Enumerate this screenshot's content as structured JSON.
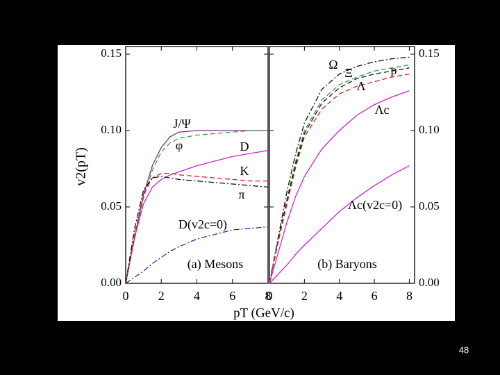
{
  "figure": {
    "ylabel": "v2(pT)",
    "xlabel": "pT (GeV/c)"
  },
  "slide_number": "48",
  "chart_data": [
    {
      "type": "line",
      "title": "(a) Mesons",
      "xlim": [
        0,
        8
      ],
      "ylim": [
        0,
        0.155
      ],
      "xticks": [
        0,
        2,
        4,
        6,
        8
      ],
      "yticks": [
        {
          "value": 0,
          "label": "0.00"
        },
        {
          "value": 0.05,
          "label": "0.05"
        },
        {
          "value": 0.1,
          "label": "0.10"
        },
        {
          "value": 0.15,
          "label": "0.15"
        }
      ],
      "y_axis_side": "left",
      "x": [
        0,
        0.5,
        1,
        1.5,
        2,
        2.5,
        3,
        4,
        5,
        6,
        7,
        8
      ],
      "series": [
        {
          "name": "J/Ψ",
          "color": "#7a2a8a",
          "dash": "solid",
          "values": [
            0,
            0.03,
            0.058,
            0.077,
            0.089,
            0.096,
            0.099,
            0.1,
            0.1,
            0.1,
            0.1,
            0.1
          ]
        },
        {
          "name": "φ",
          "color": "#3a9a3a",
          "dash": "dashed",
          "values": [
            0,
            0.029,
            0.056,
            0.074,
            0.086,
            0.092,
            0.095,
            0.097,
            0.098,
            0.099,
            0.1,
            0.1
          ]
        },
        {
          "name": "D",
          "color": "#cc22cc",
          "dash": "solid",
          "values": [
            0,
            0.03,
            0.052,
            0.063,
            0.068,
            0.071,
            0.073,
            0.077,
            0.08,
            0.083,
            0.085,
            0.087
          ]
        },
        {
          "name": "K",
          "color": "#cc2222",
          "dash": "dashed",
          "values": [
            0,
            0.032,
            0.058,
            0.069,
            0.072,
            0.072,
            0.071,
            0.07,
            0.069,
            0.068,
            0.067,
            0.067
          ]
        },
        {
          "name": "π",
          "color": "#111111",
          "dash": "dashdot",
          "values": [
            0,
            0.036,
            0.061,
            0.069,
            0.07,
            0.069,
            0.068,
            0.067,
            0.066,
            0.065,
            0.064,
            0.063
          ]
        },
        {
          "name": "D(v2c=0)",
          "color": "#2233aa",
          "dash": "dashdot",
          "values": [
            0,
            0.004,
            0.008,
            0.013,
            0.017,
            0.021,
            0.024,
            0.029,
            0.032,
            0.035,
            0.036,
            0.037
          ]
        }
      ]
    },
    {
      "type": "line",
      "title": "(b) Baryons",
      "xlim": [
        0,
        8.3
      ],
      "ylim": [
        0,
        0.155
      ],
      "xticks": [
        0,
        2,
        4,
        6,
        8
      ],
      "yticks": [
        {
          "value": 0,
          "label": "0.00"
        },
        {
          "value": 0.05,
          "label": "0.05"
        },
        {
          "value": 0.1,
          "label": "0.10"
        },
        {
          "value": 0.15,
          "label": "0.15"
        }
      ],
      "y_axis_side": "right",
      "x": [
        0,
        0.5,
        1,
        1.5,
        2,
        3,
        4,
        5,
        6,
        7,
        8
      ],
      "series": [
        {
          "name": "Ω",
          "color": "#111111",
          "dash": "dashdot",
          "values": [
            0,
            0.03,
            0.06,
            0.085,
            0.105,
            0.127,
            0.137,
            0.142,
            0.145,
            0.147,
            0.148
          ]
        },
        {
          "name": "p",
          "color": "#3a9a3a",
          "dash": "dashed",
          "values": [
            0,
            0.028,
            0.055,
            0.08,
            0.1,
            0.12,
            0.13,
            0.135,
            0.139,
            0.141,
            0.143
          ]
        },
        {
          "name": "Ξ",
          "color": "#111111",
          "dash": "dashed",
          "values": [
            0,
            0.028,
            0.054,
            0.078,
            0.098,
            0.118,
            0.128,
            0.134,
            0.137,
            0.139,
            0.141
          ]
        },
        {
          "name": "Λ",
          "color": "#cc2222",
          "dash": "dashed",
          "values": [
            0,
            0.027,
            0.052,
            0.076,
            0.096,
            0.114,
            0.124,
            0.129,
            0.132,
            0.135,
            0.137
          ]
        },
        {
          "name": "Λc",
          "color": "#cc22cc",
          "dash": "solid",
          "values": [
            0,
            0.02,
            0.04,
            0.057,
            0.07,
            0.088,
            0.1,
            0.11,
            0.117,
            0.122,
            0.126
          ]
        },
        {
          "name": "Λc(v2c=0)",
          "color": "#cc22cc",
          "dash": "solid",
          "values": [
            0,
            0.006,
            0.012,
            0.019,
            0.025,
            0.036,
            0.047,
            0.056,
            0.064,
            0.071,
            0.077
          ]
        }
      ]
    }
  ]
}
